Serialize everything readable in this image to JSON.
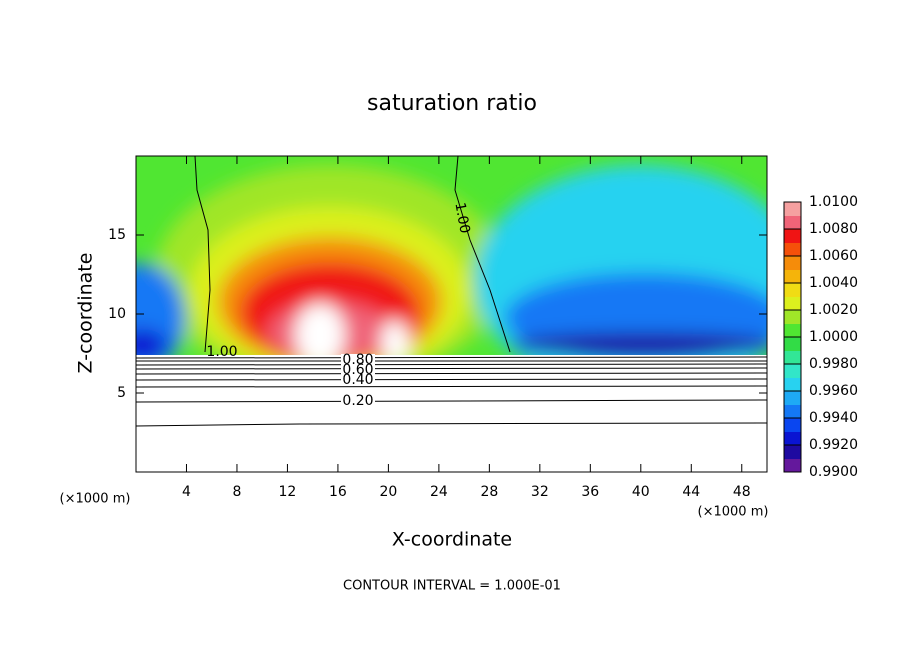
{
  "chart_data": {
    "type": "contour",
    "title": "saturation ratio",
    "xlabel": "X-coordinate",
    "ylabel": "Z-coordinate",
    "unit_label": "(×1000 m)",
    "xlim": [
      0,
      50
    ],
    "xticks": [
      4,
      8,
      12,
      16,
      20,
      24,
      28,
      32,
      36,
      40,
      44,
      48
    ],
    "ylim": [
      0,
      20
    ],
    "yticks": [
      5,
      10,
      15
    ],
    "clim": [
      0.99,
      1.01
    ],
    "cticks": [
      {
        "value": 1.01,
        "label": "1.0100"
      },
      {
        "value": 1.008,
        "label": "1.0080"
      },
      {
        "value": 1.006,
        "label": "1.0060"
      },
      {
        "value": 1.004,
        "label": "1.0040"
      },
      {
        "value": 1.002,
        "label": "1.0020"
      },
      {
        "value": 1.0,
        "label": "1.0000"
      },
      {
        "value": 0.998,
        "label": "0.9980"
      },
      {
        "value": 0.996,
        "label": "0.9960"
      },
      {
        "value": 0.994,
        "label": "0.9940"
      },
      {
        "value": 0.992,
        "label": "0.9920"
      },
      {
        "value": 0.99,
        "label": "0.9900"
      }
    ],
    "colors": [
      "#64189c",
      "#1e0aa0",
      "#0a14d2",
      "#0a46f0",
      "#1478f5",
      "#1eaaf5",
      "#28d2f0",
      "#32e6c8",
      "#32e696",
      "#32dc46",
      "#50e632",
      "#a0e628",
      "#dcf01e",
      "#f0dc14",
      "#f5b40a",
      "#f58c0a",
      "#f5500a",
      "#f01414",
      "#f06478",
      "#f5a0a0"
    ],
    "contour_labels": [
      "1.00",
      "1.00",
      "0.80",
      "0.60",
      "0.40",
      "0.20"
    ],
    "footer": "CONTOUR INTERVAL = 1.000E-01"
  }
}
